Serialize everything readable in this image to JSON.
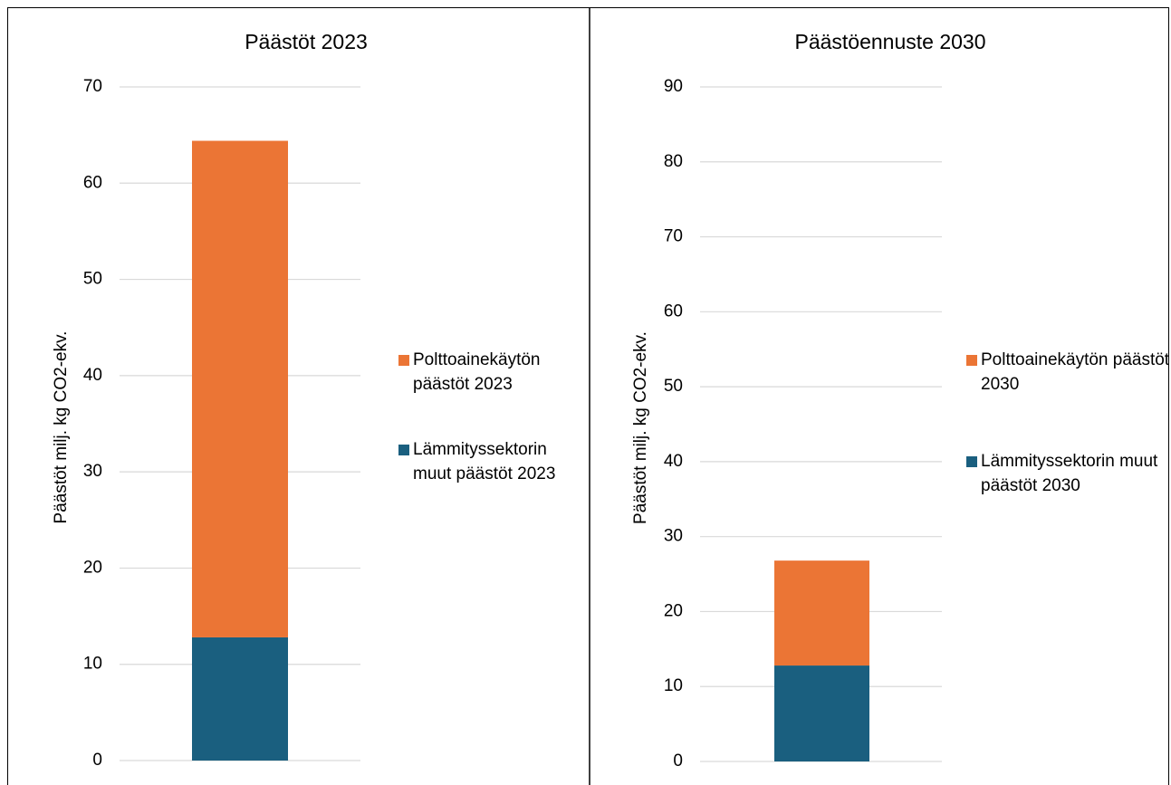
{
  "chart_data": [
    {
      "type": "bar",
      "stacked": true,
      "title": "Päästöt 2023",
      "y_label": "Päästöt milj. kg CO2-ekv.",
      "series": [
        {
          "name": "Lämmityssektorin muut päästöt 2023",
          "color": "#1a5f7f",
          "values": [
            12.8
          ]
        },
        {
          "name": "Polttoainekäytön päästöt 2023",
          "color": "#eb7535",
          "values": [
            51.6
          ]
        }
      ],
      "ylim": [
        0,
        70
      ],
      "yticks": [
        0,
        10,
        20,
        30,
        40,
        50,
        60,
        70
      ],
      "grid": true,
      "legend": "right"
    },
    {
      "type": "bar",
      "stacked": true,
      "title": "Päästöennuste 2030",
      "y_label": "Päästöt milj. kg CO2-ekv.",
      "series": [
        {
          "name": "Lämmityssektorin muut päästöt 2030",
          "color": "#1a5f7f",
          "values": [
            12.8
          ]
        },
        {
          "name": "Polttoainekäytön päästöt 2030",
          "color": "#eb7535",
          "values": [
            14.0
          ]
        }
      ],
      "ylim": [
        0,
        90
      ],
      "yticks": [
        0,
        10,
        20,
        30,
        40,
        50,
        60,
        70,
        80,
        90
      ],
      "grid": true,
      "legend": "right"
    }
  ]
}
